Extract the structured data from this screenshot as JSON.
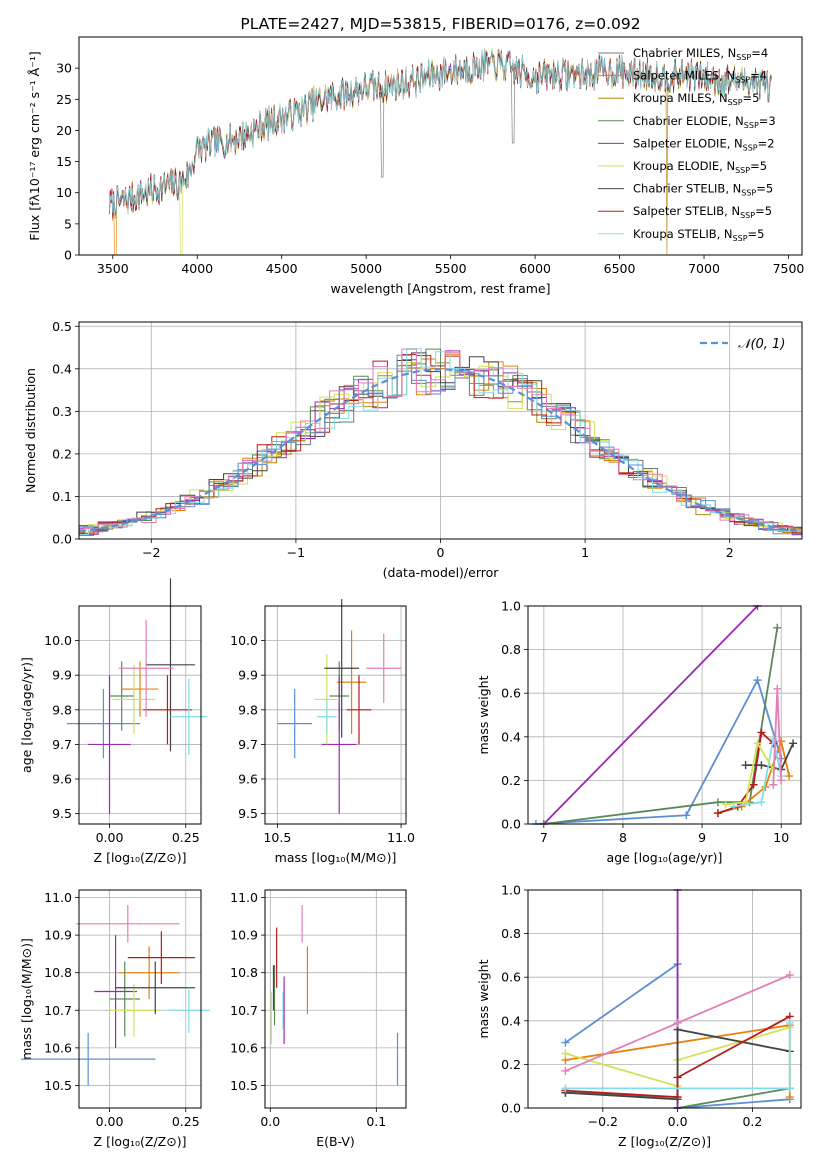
{
  "chart_data": [
    {
      "id": "spectrum",
      "type": "line",
      "title": "PLATE=2427, MJD=53815, FIBERID=0176, z=0.092",
      "xlabel": "wavelength [Angstrom, rest frame]",
      "ylabel": "Flux [fλ10⁻¹⁷ erg cm⁻² s⁻¹ Å⁻¹]",
      "xlim": [
        3300,
        7580
      ],
      "ylim": [
        0,
        35
      ],
      "xticks": [
        3500,
        4000,
        4500,
        5000,
        5500,
        6000,
        6500,
        7000,
        7500
      ],
      "yticks": [
        0,
        5,
        10,
        15,
        20,
        25,
        30
      ],
      "legend_position": "upper-right",
      "legend": [
        {
          "label": "Chabrier MILES, N",
          "sub": "SSP",
          "tail": "=4",
          "color": "#777777"
        },
        {
          "label": "Salpeter MILES, N",
          "sub": "SSP",
          "tail": "=4",
          "color": "#e8800e"
        },
        {
          "label": "Kroupa MILES, N",
          "sub": "SSP",
          "tail": "=5",
          "color": "#b8860b"
        },
        {
          "label": "Chabrier ELODIE, N",
          "sub": "SSP",
          "tail": "=3",
          "color": "#5a8a5a"
        },
        {
          "label": "Salpeter ELODIE, N",
          "sub": "SSP",
          "tail": "=2",
          "color": "#9a2ab0"
        },
        {
          "label": "Kroupa ELODIE, N",
          "sub": "SSP",
          "tail": "=5",
          "color": "#d4e157"
        },
        {
          "label": "Chabrier STELIB, N",
          "sub": "SSP",
          "tail": "=5",
          "color": "#444444"
        },
        {
          "label": "Salpeter STELIB, N",
          "sub": "SSP",
          "tail": "=5",
          "color": "#b71c1c"
        },
        {
          "label": "Kroupa STELIB, N",
          "sub": "SSP",
          "tail": "=5",
          "color": "#80deea"
        }
      ],
      "continuum": [
        [
          3480,
          8
        ],
        [
          3600,
          9
        ],
        [
          3700,
          10
        ],
        [
          3800,
          11
        ],
        [
          3900,
          11.5
        ],
        [
          3950,
          13
        ],
        [
          4000,
          17
        ],
        [
          4100,
          18
        ],
        [
          4200,
          18.5
        ],
        [
          4300,
          19.5
        ],
        [
          4400,
          21
        ],
        [
          4500,
          22
        ],
        [
          4600,
          23
        ],
        [
          4700,
          24.5
        ],
        [
          4800,
          25.5
        ],
        [
          4900,
          26
        ],
        [
          5000,
          27
        ],
        [
          5100,
          27
        ],
        [
          5200,
          27.5
        ],
        [
          5300,
          28
        ],
        [
          5400,
          29
        ],
        [
          5500,
          29.5
        ],
        [
          5600,
          30
        ],
        [
          5700,
          30.5
        ],
        [
          5800,
          30.5
        ],
        [
          5900,
          29.5
        ],
        [
          6000,
          28.5
        ],
        [
          6100,
          29
        ],
        [
          6200,
          29
        ],
        [
          6300,
          29
        ],
        [
          6400,
          29.5
        ],
        [
          6500,
          29.5
        ],
        [
          6600,
          29
        ],
        [
          6700,
          29
        ],
        [
          6800,
          28.5
        ],
        [
          6900,
          29
        ],
        [
          7000,
          28.5
        ],
        [
          7100,
          28
        ],
        [
          7200,
          28
        ],
        [
          7300,
          28
        ],
        [
          7400,
          27
        ]
      ]
    },
    {
      "id": "residuals",
      "type": "step",
      "xlabel": "(data-model)/error",
      "ylabel": "Normed distribution",
      "xlim": [
        -2.5,
        2.5
      ],
      "ylim": [
        0,
        0.51
      ],
      "xticks": [
        -2,
        -1,
        0,
        1,
        2
      ],
      "xticklabels": [
        "−2",
        "−1",
        "0",
        "1",
        "2"
      ],
      "yticks": [
        0.0,
        0.1,
        0.2,
        0.3,
        0.4,
        0.5
      ],
      "legend": {
        "label": "𝒩(0, 1)",
        "color": "#5b8fd6"
      },
      "normal": {
        "mu": 0,
        "sigma": 1
      }
    },
    {
      "id": "age_vs_Z",
      "type": "errorbar",
      "xlabel": "Z [log₁₀(Z/Z⊙)]",
      "ylabel": "age  [log₁₀(age/yr)]",
      "xlim": [
        -0.1,
        0.3
      ],
      "ylim": [
        9.47,
        10.1
      ],
      "xticks": [
        0.0,
        0.25
      ],
      "xticklabels": [
        "0.00",
        "0.25"
      ],
      "yticks": [
        9.5,
        9.6,
        9.7,
        9.8,
        9.9,
        10.0
      ],
      "yticklabels": [
        "9.5",
        "9.6",
        "9.7",
        "9.8",
        "9.9",
        "10.0"
      ],
      "points": [
        {
          "x": -0.02,
          "xerr": 0.12,
          "y": 9.76,
          "yerr": 0.1,
          "color": "#5b8fd6"
        },
        {
          "x": 0.1,
          "xerr": 0.06,
          "y": 9.86,
          "yerr": 0.08,
          "color": "#e8800e"
        },
        {
          "x": 0.04,
          "xerr": 0.04,
          "y": 9.84,
          "yerr": 0.1,
          "color": "#5a8a5a"
        },
        {
          "x": 0.0,
          "xerr": 0.07,
          "y": 9.7,
          "yerr": 0.2,
          "color": "#9a2ab0"
        },
        {
          "x": 0.08,
          "xerr": 0.07,
          "y": 9.83,
          "yerr": 0.1,
          "color": "#d4e157"
        },
        {
          "x": 0.2,
          "xerr": 0.08,
          "y": 9.93,
          "yerr": 0.25,
          "color": "#444444"
        },
        {
          "x": 0.19,
          "xerr": 0.08,
          "y": 9.8,
          "yerr": 0.1,
          "color": "#b71c1c"
        },
        {
          "x": 0.26,
          "xerr": 0.06,
          "y": 9.78,
          "yerr": 0.11,
          "color": "#80deea"
        },
        {
          "x": 0.12,
          "xerr": 0.09,
          "y": 9.92,
          "yerr": 0.14,
          "color": "#e57eb8"
        }
      ]
    },
    {
      "id": "age_vs_mass",
      "type": "errorbar",
      "xlabel": "mass [log₁₀(M/M⊙)]",
      "ylabel": "",
      "xlim": [
        10.45,
        11.02
      ],
      "ylim": [
        9.47,
        10.1
      ],
      "xticks": [
        10.5,
        11.0
      ],
      "xticklabels": [
        "10.5",
        "11.0"
      ],
      "yticks": [
        9.5,
        9.6,
        9.7,
        9.8,
        9.9,
        10.0
      ],
      "yticklabels": [
        "9.5",
        "9.6",
        "9.7",
        "9.8",
        "9.9",
        "10.0"
      ],
      "points": [
        {
          "x": 10.57,
          "xerr": 0.07,
          "y": 9.76,
          "yerr": 0.1,
          "color": "#5b8fd6"
        },
        {
          "x": 10.8,
          "xerr": 0.06,
          "y": 9.88,
          "yerr": 0.15,
          "color": "#e8800e"
        },
        {
          "x": 10.75,
          "xerr": 0.04,
          "y": 9.84,
          "yerr": 0.1,
          "color": "#5a8a5a"
        },
        {
          "x": 10.75,
          "xerr": 0.07,
          "y": 9.7,
          "yerr": 0.2,
          "color": "#9a2ab0"
        },
        {
          "x": 10.7,
          "xerr": 0.05,
          "y": 9.83,
          "yerr": 0.13,
          "color": "#d4e157"
        },
        {
          "x": 10.76,
          "xerr": 0.07,
          "y": 9.92,
          "yerr": 0.2,
          "color": "#444444"
        },
        {
          "x": 10.83,
          "xerr": 0.05,
          "y": 9.8,
          "yerr": 0.1,
          "color": "#b71c1c"
        },
        {
          "x": 10.7,
          "xerr": 0.04,
          "y": 9.78,
          "yerr": 0.05,
          "color": "#80deea"
        },
        {
          "x": 10.93,
          "xerr": 0.07,
          "y": 9.92,
          "yerr": 0.1,
          "color": "#e57eb8"
        }
      ]
    },
    {
      "id": "mass_weight_vs_age",
      "type": "line",
      "xlabel": "age  [log₁₀(age/yr)]",
      "ylabel": "mass weight",
      "xlim": [
        6.8,
        10.25
      ],
      "ylim": [
        0,
        1.0
      ],
      "xticks": [
        7,
        8,
        9,
        10
      ],
      "yticks": [
        0.0,
        0.2,
        0.4,
        0.6,
        0.8,
        1.0
      ],
      "yticklabels": [
        "0.0",
        "0.2",
        "0.4",
        "0.6",
        "0.8",
        "1.0"
      ],
      "series": [
        {
          "color": "#5b8fd6",
          "x": [
            6.9,
            8.8,
            9.7,
            10.0
          ],
          "y": [
            0.0,
            0.04,
            0.66,
            0.3
          ]
        },
        {
          "color": "#9a2ab0",
          "x": [
            7.0,
            9.7
          ],
          "y": [
            0.0,
            1.0
          ]
        },
        {
          "color": "#5a8a5a",
          "x": [
            7.0,
            9.2,
            9.6,
            9.95
          ],
          "y": [
            0.0,
            0.1,
            0.1,
            0.9
          ]
        },
        {
          "color": "#e8800e",
          "x": [
            9.2,
            9.5,
            9.8,
            10.0,
            10.1
          ],
          "y": [
            0.05,
            0.08,
            0.17,
            0.38,
            0.22
          ]
        },
        {
          "color": "#b71c1c",
          "x": [
            9.2,
            9.45,
            9.65,
            9.75,
            9.9
          ],
          "y": [
            0.05,
            0.08,
            0.18,
            0.42,
            0.37
          ]
        },
        {
          "color": "#444444",
          "x": [
            9.55,
            9.75,
            10.0,
            10.15
          ],
          "y": [
            0.27,
            0.27,
            0.25,
            0.37
          ]
        },
        {
          "color": "#80deea",
          "x": [
            9.4,
            9.75,
            9.9,
            10.0
          ],
          "y": [
            0.08,
            0.1,
            0.39,
            0.22
          ]
        },
        {
          "color": "#d4e157",
          "x": [
            9.3,
            9.55,
            9.7,
            9.9
          ],
          "y": [
            0.09,
            0.1,
            0.37,
            0.25
          ]
        },
        {
          "color": "#e57eb8",
          "x": [
            9.9,
            9.95,
            10.0
          ],
          "y": [
            0.18,
            0.62,
            0.2
          ]
        }
      ]
    },
    {
      "id": "mass_vs_Z",
      "type": "errorbar",
      "xlabel": "Z [log₁₀(Z/Z⊙)]",
      "ylabel": "mass [log₁₀(M/M⊙)]",
      "xlim": [
        -0.1,
        0.3
      ],
      "ylim": [
        10.44,
        11.02
      ],
      "xticks": [
        0.0,
        0.25
      ],
      "xticklabels": [
        "0.00",
        "0.25"
      ],
      "yticks": [
        10.5,
        10.6,
        10.7,
        10.8,
        10.9,
        11.0
      ],
      "yticklabels": [
        "10.5",
        "10.6",
        "10.7",
        "10.8",
        "10.9",
        "11.0"
      ],
      "points": [
        {
          "x": -0.07,
          "xerr": 0.22,
          "y": 10.57,
          "yerr": 0.07,
          "color": "#5b8fd6"
        },
        {
          "x": 0.13,
          "xerr": 0.1,
          "y": 10.8,
          "yerr": 0.07,
          "color": "#e8800e"
        },
        {
          "x": 0.05,
          "xerr": 0.05,
          "y": 10.73,
          "yerr": 0.1,
          "color": "#5a8a5a"
        },
        {
          "x": 0.02,
          "xerr": 0.07,
          "y": 10.75,
          "yerr": 0.15,
          "color": "#9a2ab0"
        },
        {
          "x": 0.08,
          "xerr": 0.08,
          "y": 10.7,
          "yerr": 0.07,
          "color": "#d4e157"
        },
        {
          "x": 0.15,
          "xerr": 0.13,
          "y": 10.76,
          "yerr": 0.07,
          "color": "#444444"
        },
        {
          "x": 0.17,
          "xerr": 0.11,
          "y": 10.84,
          "yerr": 0.07,
          "color": "#b71c1c"
        },
        {
          "x": 0.26,
          "xerr": 0.07,
          "y": 10.7,
          "yerr": 0.06,
          "color": "#80deea"
        },
        {
          "x": 0.06,
          "xerr": 0.17,
          "y": 10.93,
          "yerr": 0.05,
          "color": "#e57eb8"
        }
      ]
    },
    {
      "id": "mass_vs_ebv",
      "type": "errorbar",
      "xlabel": "E(B-V)",
      "ylabel": "",
      "xlim": [
        -0.005,
        0.128
      ],
      "ylim": [
        10.44,
        11.02
      ],
      "xticks": [
        0.0,
        0.1
      ],
      "xticklabels": [
        "0.0",
        "0.1"
      ],
      "yticks": [
        10.5,
        10.6,
        10.7,
        10.8,
        10.9,
        11.0
      ],
      "yticklabels": [
        "10.5",
        "10.6",
        "10.7",
        "10.8",
        "10.9",
        "11.0"
      ],
      "points": [
        {
          "x": 0.12,
          "xerr": 0,
          "y": 10.57,
          "yerr": 0.07,
          "color": "#5b8fd6"
        },
        {
          "x": 0.035,
          "xerr": 0,
          "y": 10.78,
          "yerr": 0.09,
          "color": "#e8800e"
        },
        {
          "x": 0.004,
          "xerr": 0,
          "y": 10.74,
          "yerr": 0.08,
          "color": "#5a8a5a"
        },
        {
          "x": 0.013,
          "xerr": 0,
          "y": 10.7,
          "yerr": 0.09,
          "color": "#9a2ab0"
        },
        {
          "x": 0.001,
          "xerr": 0,
          "y": 10.68,
          "yerr": 0.07,
          "color": "#d4e157"
        },
        {
          "x": 0.003,
          "xerr": 0,
          "y": 10.76,
          "yerr": 0.06,
          "color": "#444444"
        },
        {
          "x": 0.006,
          "xerr": 0,
          "y": 10.84,
          "yerr": 0.08,
          "color": "#b71c1c"
        },
        {
          "x": 0.012,
          "xerr": 0,
          "y": 10.7,
          "yerr": 0.05,
          "color": "#80deea"
        },
        {
          "x": 0.03,
          "xerr": 0,
          "y": 10.93,
          "yerr": 0.05,
          "color": "#e57eb8"
        }
      ]
    },
    {
      "id": "mass_weight_vs_Z",
      "type": "line",
      "xlabel": "Z [log₁₀(Z/Z⊙)]",
      "ylabel": "mass weight",
      "xlim": [
        -0.4,
        0.33
      ],
      "ylim": [
        0,
        1.0
      ],
      "xticks": [
        -0.2,
        0.0,
        0.2
      ],
      "xticklabels": [
        "−0.2",
        "0.0",
        "0.2"
      ],
      "yticks": [
        0.0,
        0.2,
        0.4,
        0.6,
        0.8,
        1.0
      ],
      "yticklabels": [
        "0.0",
        "0.2",
        "0.4",
        "0.6",
        "0.8",
        "1.0"
      ],
      "series": [
        {
          "color": "#5b8fd6",
          "x": [
            -0.3,
            0.0,
            0.0,
            0.3
          ],
          "y": [
            0.3,
            0.66,
            0.0,
            0.04
          ]
        },
        {
          "color": "#e8800e",
          "x": [
            -0.3,
            0.3,
            0.3
          ],
          "y": [
            0.22,
            0.38,
            0.05
          ]
        },
        {
          "color": "#5a8a5a",
          "x": [
            -0.3,
            0.0,
            0.0,
            0.3
          ],
          "y": [
            0.07,
            0.05,
            0.0,
            0.09
          ]
        },
        {
          "color": "#9a2ab0",
          "x": [
            0.0,
            0.0
          ],
          "y": [
            0.0,
            1.0
          ]
        },
        {
          "color": "#d4e157",
          "x": [
            -0.3,
            0.0,
            0.0,
            0.3
          ],
          "y": [
            0.25,
            0.1,
            0.22,
            0.37
          ]
        },
        {
          "color": "#444444",
          "x": [
            -0.3,
            0.0,
            0.0,
            0.3
          ],
          "y": [
            0.07,
            0.04,
            0.36,
            0.26
          ]
        },
        {
          "color": "#b71c1c",
          "x": [
            -0.3,
            0.0,
            0.0,
            0.3
          ],
          "y": [
            0.08,
            0.05,
            0.14,
            0.42
          ]
        },
        {
          "color": "#80deea",
          "x": [
            -0.3,
            0.3,
            0.3
          ],
          "y": [
            0.09,
            0.09,
            0.39
          ]
        },
        {
          "color": "#e57eb8",
          "x": [
            -0.3,
            0.0,
            0.3
          ],
          "y": [
            0.17,
            0.39,
            0.61
          ]
        }
      ]
    }
  ]
}
